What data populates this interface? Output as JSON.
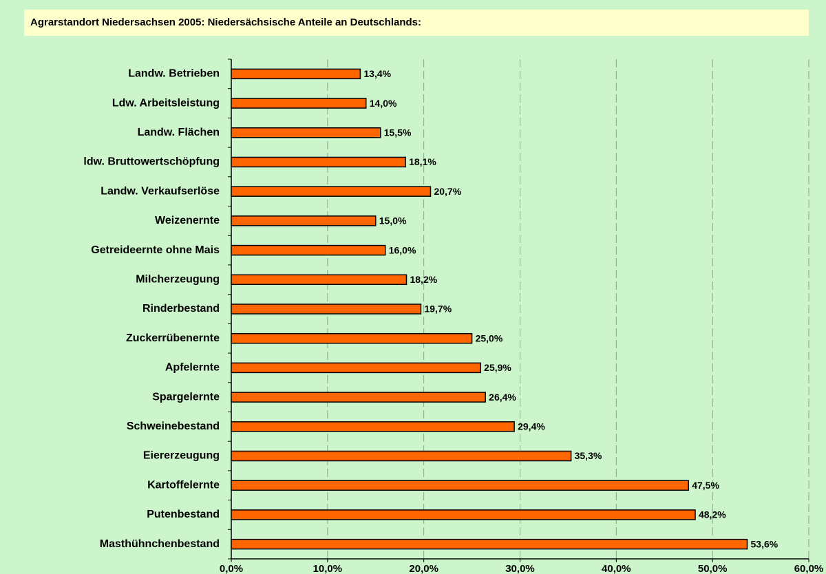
{
  "chart_data": {
    "type": "bar",
    "orientation": "horizontal",
    "title": "Agrarstandort Niedersachsen 2005: Niedersächsische Anteile an Deutschlands:",
    "categories": [
      "Landw. Betrieben",
      "Ldw. Arbeitsleistung",
      "Landw. Flächen",
      "ldw. Bruttowertschöpfung",
      "Landw. Verkaufserlöse",
      "Weizenernte",
      "Getreideernte ohne Mais",
      "Milcherzeugung",
      "Rinderbestand",
      "Zuckerrübenernte",
      "Apfelernte",
      "Spargelernte",
      "Schweinebestand",
      "Eiererzeugung",
      "Kartoffelernte",
      "Putenbestand",
      "Masthühnchenbestand"
    ],
    "values": [
      13.4,
      14.0,
      15.5,
      18.1,
      20.7,
      15.0,
      16.0,
      18.2,
      19.7,
      25.0,
      25.9,
      26.4,
      29.4,
      35.3,
      47.5,
      48.2,
      53.6
    ],
    "value_labels": [
      "13,4%",
      "14,0%",
      "15,5%",
      "18,1%",
      "20,7%",
      "15,0%",
      "16,0%",
      "18,2%",
      "19,7%",
      "25,0%",
      "25,9%",
      "26,4%",
      "29,4%",
      "35,3%",
      "47,5%",
      "48,2%",
      "53,6%"
    ],
    "color": "#ff6600",
    "xlim": [
      0,
      60
    ],
    "xticks": [
      {
        "value": 0,
        "label": "0,0%"
      },
      {
        "value": 10,
        "label": "10,0%"
      },
      {
        "value": 20,
        "label": "20,0%"
      },
      {
        "value": 30,
        "label": "30,0%"
      },
      {
        "value": 40,
        "label": "40,0%"
      },
      {
        "value": 50,
        "label": "50,0%"
      },
      {
        "value": 60,
        "label": "60,0%"
      }
    ],
    "grid": true
  }
}
